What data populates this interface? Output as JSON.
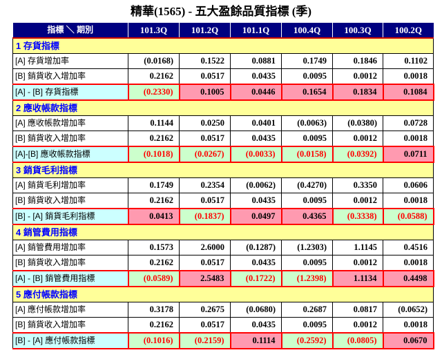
{
  "title": "精華(1565) -  五大盈餘品質指標 (季)",
  "colors": {
    "header_bg": "#000080",
    "header_text": "#FFFFFF",
    "section_bg": "#FFFF99",
    "section_text": "#0000FF",
    "summary_label_bg": "#CCFFFF",
    "summary_positive_bg": "#FF9AB0",
    "summary_negative_bg": "#CCFFCC",
    "negative_text": "#FF0000",
    "header_divider": "#CC0000"
  },
  "table": {
    "header": {
      "label": "指標 ＼ 期別",
      "periods": [
        "101.3Q",
        "101.2Q",
        "101.1Q",
        "100.4Q",
        "100.3Q",
        "100.2Q"
      ]
    },
    "sections": [
      {
        "title": "1 存貨指標",
        "rows": [
          {
            "label": "[A] 存貨增加率",
            "type": "data",
            "values": [
              -0.0168,
              0.1522,
              0.0881,
              0.1749,
              0.1846,
              0.1102
            ]
          },
          {
            "label": "[B] 銷貨收入增加率",
            "type": "data",
            "values": [
              0.2162,
              0.0517,
              0.0435,
              0.0095,
              0.0012,
              0.0018
            ]
          },
          {
            "label": "[A] - [B] 存貨指標",
            "type": "summary",
            "values": [
              -0.233,
              0.1005,
              0.0446,
              0.1654,
              0.1834,
              0.1084
            ]
          }
        ]
      },
      {
        "title": "2 應收帳款指標",
        "rows": [
          {
            "label": "[A] 應收帳款增加率",
            "type": "data",
            "values": [
              0.1144,
              0.025,
              0.0401,
              -0.0063,
              -0.038,
              0.0728
            ]
          },
          {
            "label": "[B] 銷貨收入增加率",
            "type": "data",
            "values": [
              0.2162,
              0.0517,
              0.0435,
              0.0095,
              0.0012,
              0.0018
            ]
          },
          {
            "label": "[A]-[B] 應收帳款指標",
            "type": "summary",
            "values": [
              -0.1018,
              -0.0267,
              -0.0033,
              -0.0158,
              -0.0392,
              0.0711
            ]
          }
        ]
      },
      {
        "title": "3 銷貨毛利指標",
        "rows": [
          {
            "label": "[A] 銷貨毛利增加率",
            "type": "data",
            "values": [
              0.1749,
              0.2354,
              -0.0062,
              -0.427,
              0.335,
              0.0606
            ]
          },
          {
            "label": "[B] 銷貨收入增加率",
            "type": "data",
            "values": [
              0.2162,
              0.0517,
              0.0435,
              0.0095,
              0.0012,
              0.0018
            ]
          },
          {
            "label": "[B] - [A] 銷貨毛利指標",
            "type": "summary",
            "values": [
              0.0413,
              -0.1837,
              0.0497,
              0.4365,
              -0.3338,
              -0.0588
            ]
          }
        ]
      },
      {
        "title": "4 銷管費用指標",
        "rows": [
          {
            "label": "[A] 銷管費用增加率",
            "type": "data",
            "values": [
              0.1573,
              2.6,
              -0.1287,
              -1.2303,
              1.1145,
              0.4516
            ]
          },
          {
            "label": "[B] 銷貨收入增加率",
            "type": "data",
            "values": [
              0.2162,
              0.0517,
              0.0435,
              0.0095,
              0.0012,
              0.0018
            ]
          },
          {
            "label": "[A] - [B] 銷管費用指標",
            "type": "summary",
            "values": [
              -0.0589,
              2.5483,
              -0.1722,
              -1.2398,
              1.1134,
              0.4498
            ]
          }
        ]
      },
      {
        "title": "5 應付帳款指標",
        "rows": [
          {
            "label": "[A] 應付帳款增加率",
            "type": "data",
            "values": [
              0.3178,
              0.2675,
              -0.068,
              0.2687,
              0.0817,
              -0.0652
            ]
          },
          {
            "label": "[B] 銷貨收入增加率",
            "type": "data",
            "values": [
              0.2162,
              0.0517,
              0.0435,
              0.0095,
              0.0012,
              0.0018
            ]
          },
          {
            "label": "[B] - [A] 應付帳款指標",
            "type": "summary",
            "values": [
              -0.1016,
              -0.2159,
              0.1114,
              -0.2592,
              -0.0805,
              0.067
            ]
          }
        ]
      }
    ]
  }
}
